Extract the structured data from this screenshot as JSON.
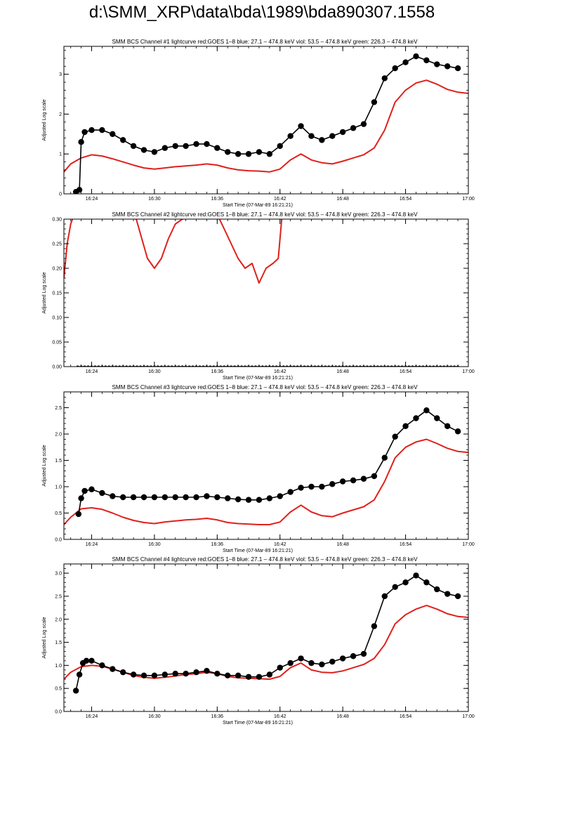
{
  "page": {
    "title": "d:\\SMM_XRP\\data\\bda\\1989\\bda890307.1558"
  },
  "colors": {
    "goes": "#e0201b",
    "bcs": "#000000",
    "axes": "#000000"
  },
  "chart_data": [
    {
      "type": "line",
      "title": "SMM BCS Channel #1 lightcurve  red:GOES 1–8  blue: 27.1 – 474.8 keV  viol: 53.5 – 474.8 keV  green: 226.3 – 474.8 keV",
      "xlabel": "Start Time (07-Mar-89 16:21:21)",
      "ylabel": "Adjusted Log scale",
      "xlim": [
        "16:21:21",
        "17:00:00"
      ],
      "ylim": [
        0,
        3.7
      ],
      "xticks": [
        "16:24",
        "16:30",
        "16:36",
        "16:42",
        "16:48",
        "16:54",
        "17:00"
      ],
      "yticks": [
        "0",
        "1",
        "2",
        "3"
      ],
      "series": [
        {
          "role": "goes",
          "color": "#e0201b",
          "marker": "none",
          "x": [
            "16:21:21",
            "16:22:00",
            "16:23:00",
            "16:24:00",
            "16:25:00",
            "16:26:00",
            "16:27:00",
            "16:28:00",
            "16:29:00",
            "16:30:00",
            "16:31:00",
            "16:32:00",
            "16:33:00",
            "16:34:00",
            "16:35:00",
            "16:36:00",
            "16:37:00",
            "16:38:00",
            "16:39:00",
            "16:40:00",
            "16:41:00",
            "16:42:00",
            "16:43:00",
            "16:44:00",
            "16:45:00",
            "16:46:00",
            "16:47:00",
            "16:48:00",
            "16:49:00",
            "16:50:00",
            "16:51:00",
            "16:52:00",
            "16:53:00",
            "16:54:00",
            "16:55:00",
            "16:56:00",
            "16:57:00",
            "16:58:00",
            "16:59:00",
            "17:00:00"
          ],
          "y": [
            0.55,
            0.75,
            0.9,
            0.98,
            0.95,
            0.88,
            0.8,
            0.72,
            0.65,
            0.62,
            0.65,
            0.68,
            0.7,
            0.72,
            0.75,
            0.72,
            0.65,
            0.6,
            0.58,
            0.57,
            0.55,
            0.62,
            0.85,
            1.0,
            0.85,
            0.78,
            0.75,
            0.82,
            0.9,
            0.98,
            1.15,
            1.6,
            2.3,
            2.6,
            2.78,
            2.85,
            2.75,
            2.62,
            2.55,
            2.52
          ]
        },
        {
          "role": "bcs",
          "color": "#000000",
          "marker": "circle",
          "x": [
            "16:22:30",
            "16:22:50",
            "16:23:00",
            "16:23:20",
            "16:24:00",
            "16:25:00",
            "16:26:00",
            "16:27:00",
            "16:28:00",
            "16:29:00",
            "16:30:00",
            "16:31:00",
            "16:32:00",
            "16:33:00",
            "16:34:00",
            "16:35:00",
            "16:36:00",
            "16:37:00",
            "16:38:00",
            "16:39:00",
            "16:40:00",
            "16:41:00",
            "16:42:00",
            "16:43:00",
            "16:44:00",
            "16:45:00",
            "16:46:00",
            "16:47:00",
            "16:48:00",
            "16:49:00",
            "16:50:00",
            "16:51:00",
            "16:52:00",
            "16:53:00",
            "16:54:00",
            "16:55:00",
            "16:56:00",
            "16:57:00",
            "16:58:00",
            "16:59:00"
          ],
          "y": [
            0.05,
            0.1,
            1.3,
            1.55,
            1.6,
            1.6,
            1.5,
            1.35,
            1.2,
            1.1,
            1.05,
            1.15,
            1.2,
            1.2,
            1.25,
            1.25,
            1.15,
            1.05,
            1.0,
            1.0,
            1.05,
            1.0,
            1.2,
            1.45,
            1.7,
            1.45,
            1.35,
            1.45,
            1.55,
            1.65,
            1.75,
            2.3,
            2.9,
            3.15,
            3.3,
            3.45,
            3.35,
            3.25,
            3.2,
            3.15
          ]
        }
      ]
    },
    {
      "type": "line",
      "title": "SMM BCS Channel #2 lightcurve  red:GOES 1–8  blue: 27.1 – 474.8 keV  viol: 53.5 – 474.8 keV  green: 226.3 – 474.8 keV",
      "xlabel": "Start Time (07-Mar-89 16:21:21)",
      "ylabel": "Adjusted Log scale",
      "xlim": [
        "16:21:21",
        "17:00:00"
      ],
      "ylim": [
        0,
        0.3
      ],
      "xticks": [
        "16:24",
        "16:30",
        "16:36",
        "16:42",
        "16:48",
        "16:54",
        "17:00"
      ],
      "yticks": [
        "0.00",
        "0.05",
        "0.10",
        "0.15",
        "0.20",
        "0.25",
        "0.30"
      ],
      "series": [
        {
          "role": "goes",
          "color": "#e0201b",
          "marker": "none",
          "clip": true,
          "x": [
            "16:21:21",
            "16:21:40",
            "16:22:00",
            "16:22:30",
            "16:28:00",
            "16:28:40",
            "16:29:20",
            "16:30:00",
            "16:30:40",
            "16:31:20",
            "16:32:00",
            "16:32:40",
            "16:33:20",
            "16:34:00",
            "16:35:00",
            "16:36:00",
            "16:36:40",
            "16:37:20",
            "16:38:00",
            "16:38:40",
            "16:39:20",
            "16:40:00",
            "16:40:40",
            "16:41:20",
            "16:41:50",
            "16:42:10",
            "16:43:00"
          ],
          "y": [
            0.18,
            0.25,
            0.29,
            0.32,
            0.32,
            0.27,
            0.22,
            0.2,
            0.22,
            0.26,
            0.29,
            0.3,
            0.31,
            0.31,
            0.31,
            0.31,
            0.28,
            0.25,
            0.22,
            0.2,
            0.21,
            0.17,
            0.2,
            0.21,
            0.22,
            0.3,
            0.32
          ]
        },
        {
          "role": "bcs",
          "color": "#000000",
          "marker": "circle-small",
          "x": [
            "16:22:40",
            "16:59:00"
          ],
          "y": [
            0.0,
            0.0
          ]
        }
      ]
    },
    {
      "type": "line",
      "title": "SMM BCS Channel #3 lightcurve  red:GOES 1–8  blue: 27.1 – 474.8 keV  viol: 53.5 – 474.8 keV  green: 226.3 – 474.8 keV",
      "xlabel": "Start Time (07-Mar-89 16:21:21)",
      "ylabel": "Adjusted Log scale",
      "xlim": [
        "16:21:21",
        "17:00:00"
      ],
      "ylim": [
        0,
        2.8
      ],
      "xticks": [
        "16:24",
        "16:30",
        "16:36",
        "16:42",
        "16:48",
        "16:54",
        "17:00"
      ],
      "yticks": [
        "0.0",
        "0.5",
        "1.0",
        "1.5",
        "2.0",
        "2.5"
      ],
      "series": [
        {
          "role": "goes",
          "color": "#e0201b",
          "marker": "none",
          "x": [
            "16:21:21",
            "16:22:00",
            "16:23:00",
            "16:24:00",
            "16:25:00",
            "16:26:00",
            "16:27:00",
            "16:28:00",
            "16:29:00",
            "16:30:00",
            "16:31:00",
            "16:32:00",
            "16:33:00",
            "16:34:00",
            "16:35:00",
            "16:36:00",
            "16:37:00",
            "16:38:00",
            "16:39:00",
            "16:40:00",
            "16:41:00",
            "16:42:00",
            "16:43:00",
            "16:44:00",
            "16:45:00",
            "16:46:00",
            "16:47:00",
            "16:48:00",
            "16:49:00",
            "16:50:00",
            "16:51:00",
            "16:52:00",
            "16:53:00",
            "16:54:00",
            "16:55:00",
            "16:56:00",
            "16:57:00",
            "16:58:00",
            "16:59:00",
            "17:00:00"
          ],
          "y": [
            0.28,
            0.42,
            0.58,
            0.6,
            0.57,
            0.5,
            0.42,
            0.36,
            0.32,
            0.3,
            0.33,
            0.35,
            0.37,
            0.38,
            0.4,
            0.37,
            0.32,
            0.3,
            0.29,
            0.28,
            0.28,
            0.33,
            0.52,
            0.65,
            0.52,
            0.45,
            0.43,
            0.5,
            0.56,
            0.62,
            0.75,
            1.1,
            1.55,
            1.75,
            1.85,
            1.9,
            1.82,
            1.73,
            1.67,
            1.65
          ]
        },
        {
          "role": "bcs",
          "color": "#000000",
          "marker": "circle",
          "x": [
            "16:22:45",
            "16:23:00",
            "16:23:20",
            "16:24:00",
            "16:25:00",
            "16:26:00",
            "16:27:00",
            "16:28:00",
            "16:29:00",
            "16:30:00",
            "16:31:00",
            "16:32:00",
            "16:33:00",
            "16:34:00",
            "16:35:00",
            "16:36:00",
            "16:37:00",
            "16:38:00",
            "16:39:00",
            "16:40:00",
            "16:41:00",
            "16:42:00",
            "16:43:00",
            "16:44:00",
            "16:45:00",
            "16:46:00",
            "16:47:00",
            "16:48:00",
            "16:49:00",
            "16:50:00",
            "16:51:00",
            "16:52:00",
            "16:53:00",
            "16:54:00",
            "16:55:00",
            "16:56:00",
            "16:57:00",
            "16:58:00",
            "16:59:00"
          ],
          "y": [
            0.48,
            0.78,
            0.92,
            0.95,
            0.88,
            0.82,
            0.8,
            0.8,
            0.8,
            0.8,
            0.8,
            0.8,
            0.8,
            0.8,
            0.82,
            0.8,
            0.78,
            0.76,
            0.75,
            0.75,
            0.78,
            0.82,
            0.9,
            0.98,
            1.0,
            1.0,
            1.05,
            1.1,
            1.12,
            1.15,
            1.2,
            1.55,
            1.95,
            2.15,
            2.3,
            2.45,
            2.3,
            2.15,
            2.05
          ]
        }
      ]
    },
    {
      "type": "line",
      "title": "SMM BCS Channel #4 lightcurve  red:GOES 1–8  blue: 27.1 – 474.8 keV  viol: 53.5 – 474.8 keV  green: 226.3 – 474.8 keV",
      "xlabel": "Start Time (07-Mar-89 16:21:21)",
      "ylabel": "Adjusted Log scale",
      "xlim": [
        "16:21:21",
        "17:00:00"
      ],
      "ylim": [
        0,
        3.2
      ],
      "xticks": [
        "16:24",
        "16:30",
        "16:36",
        "16:42",
        "16:48",
        "16:54",
        "17:00"
      ],
      "yticks": [
        "0.0",
        "0.5",
        "1.0",
        "1.5",
        "2.0",
        "2.5",
        "3.0"
      ],
      "series": [
        {
          "role": "goes",
          "color": "#e0201b",
          "marker": "none",
          "x": [
            "16:21:21",
            "16:22:00",
            "16:23:00",
            "16:24:00",
            "16:25:00",
            "16:26:00",
            "16:27:00",
            "16:28:00",
            "16:29:00",
            "16:30:00",
            "16:31:00",
            "16:32:00",
            "16:33:00",
            "16:34:00",
            "16:35:00",
            "16:36:00",
            "16:37:00",
            "16:38:00",
            "16:39:00",
            "16:40:00",
            "16:41:00",
            "16:42:00",
            "16:43:00",
            "16:44:00",
            "16:45:00",
            "16:46:00",
            "16:47:00",
            "16:48:00",
            "16:49:00",
            "16:50:00",
            "16:51:00",
            "16:52:00",
            "16:53:00",
            "16:54:00",
            "16:55:00",
            "16:56:00",
            "16:57:00",
            "16:58:00",
            "16:59:00",
            "17:00:00"
          ],
          "y": [
            0.7,
            0.85,
            0.97,
            1.0,
            0.98,
            0.92,
            0.85,
            0.78,
            0.74,
            0.72,
            0.74,
            0.77,
            0.8,
            0.82,
            0.85,
            0.82,
            0.76,
            0.73,
            0.72,
            0.71,
            0.7,
            0.76,
            0.95,
            1.05,
            0.9,
            0.85,
            0.84,
            0.88,
            0.95,
            1.02,
            1.15,
            1.45,
            1.9,
            2.1,
            2.22,
            2.3,
            2.22,
            2.12,
            2.06,
            2.04
          ]
        },
        {
          "role": "bcs",
          "color": "#000000",
          "marker": "circle",
          "x": [
            "16:22:30",
            "16:22:50",
            "16:23:10",
            "16:23:30",
            "16:24:00",
            "16:25:00",
            "16:26:00",
            "16:27:00",
            "16:28:00",
            "16:29:00",
            "16:30:00",
            "16:31:00",
            "16:32:00",
            "16:33:00",
            "16:34:00",
            "16:35:00",
            "16:36:00",
            "16:37:00",
            "16:38:00",
            "16:39:00",
            "16:40:00",
            "16:41:00",
            "16:42:00",
            "16:43:00",
            "16:44:00",
            "16:45:00",
            "16:46:00",
            "16:47:00",
            "16:48:00",
            "16:49:00",
            "16:50:00",
            "16:51:00",
            "16:52:00",
            "16:53:00",
            "16:54:00",
            "16:55:00",
            "16:56:00",
            "16:57:00",
            "16:58:00",
            "16:59:00"
          ],
          "y": [
            0.45,
            0.8,
            1.05,
            1.1,
            1.1,
            1.0,
            0.92,
            0.85,
            0.8,
            0.78,
            0.78,
            0.8,
            0.82,
            0.82,
            0.85,
            0.88,
            0.82,
            0.78,
            0.78,
            0.75,
            0.75,
            0.8,
            0.95,
            1.05,
            1.15,
            1.05,
            1.02,
            1.08,
            1.15,
            1.2,
            1.25,
            1.85,
            2.5,
            2.7,
            2.8,
            2.95,
            2.8,
            2.65,
            2.55,
            2.5
          ]
        }
      ]
    }
  ]
}
